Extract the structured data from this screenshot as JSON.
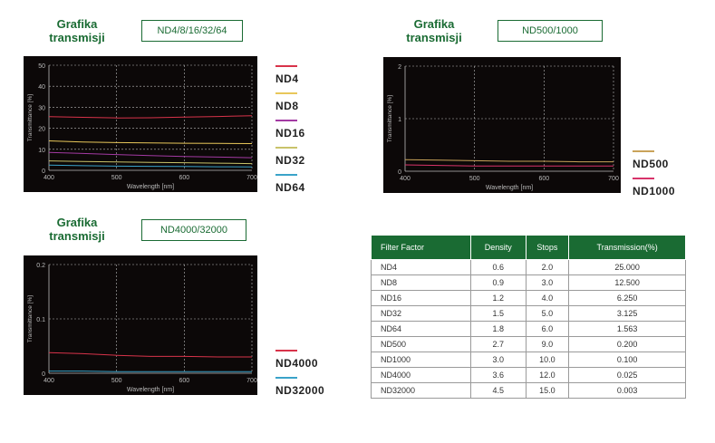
{
  "panels": [
    {
      "title_line1": "Grafika",
      "title_line2": "transmisji",
      "box_label": "ND4/8/16/32/64"
    },
    {
      "title_line1": "Grafika",
      "title_line2": "transmisji",
      "box_label": "ND500/1000"
    },
    {
      "title_line1": "Grafika",
      "title_line2": "transmisji",
      "box_label": "ND4000/32000"
    }
  ],
  "chart_data": [
    {
      "type": "line",
      "xlabel": "Wavelength [nm]",
      "ylabel": "Transmittance [%]",
      "xlim": [
        400,
        700
      ],
      "ylim": [
        0,
        50
      ],
      "xticks": [
        "400",
        "500",
        "600",
        "700"
      ],
      "yticks": [
        "0",
        "10",
        "20",
        "30",
        "40",
        "50"
      ],
      "grid": true,
      "legend_position": "right",
      "series": [
        {
          "name": "ND4",
          "color": "#d8334a",
          "x": [
            400,
            450,
            500,
            550,
            600,
            650,
            700
          ],
          "y": [
            25.5,
            25.2,
            24.9,
            25.0,
            25.3,
            25.6,
            26.0
          ]
        },
        {
          "name": "ND8",
          "color": "#e8c75a",
          "x": [
            400,
            450,
            500,
            550,
            600,
            650,
            700
          ],
          "y": [
            14.0,
            13.5,
            13.2,
            13.0,
            12.9,
            12.8,
            12.7
          ]
        },
        {
          "name": "ND16",
          "color": "#a33aa3",
          "x": [
            400,
            450,
            500,
            550,
            600,
            650,
            700
          ],
          "y": [
            8.5,
            8.0,
            7.5,
            7.0,
            6.6,
            6.3,
            6.0
          ]
        },
        {
          "name": "ND32",
          "color": "#c9c36a",
          "x": [
            400,
            450,
            500,
            550,
            600,
            650,
            700
          ],
          "y": [
            4.5,
            4.2,
            4.0,
            3.8,
            3.6,
            3.4,
            3.2
          ]
        },
        {
          "name": "ND64",
          "color": "#3aa3c9",
          "x": [
            400,
            450,
            500,
            550,
            600,
            650,
            700
          ],
          "y": [
            2.5,
            2.2,
            2.0,
            1.9,
            1.8,
            1.7,
            1.6
          ]
        }
      ]
    },
    {
      "type": "line",
      "xlabel": "Wavelength [nm]",
      "ylabel": "Transmittance [%]",
      "xlim": [
        400,
        700
      ],
      "ylim": [
        0,
        2
      ],
      "xticks": [
        "400",
        "500",
        "600",
        "700"
      ],
      "yticks": [
        "0",
        "1",
        "2"
      ],
      "grid": true,
      "legend_position": "right",
      "series": [
        {
          "name": "ND500",
          "color": "#c9a35a",
          "x": [
            400,
            450,
            500,
            550,
            600,
            650,
            700
          ],
          "y": [
            0.22,
            0.21,
            0.2,
            0.19,
            0.19,
            0.18,
            0.18
          ]
        },
        {
          "name": "ND1000",
          "color": "#d8336a",
          "x": [
            400,
            450,
            500,
            550,
            600,
            650,
            700
          ],
          "y": [
            0.12,
            0.11,
            0.1,
            0.1,
            0.1,
            0.1,
            0.1
          ]
        }
      ]
    },
    {
      "type": "line",
      "xlabel": "Wavelength [nm]",
      "ylabel": "Transmittance [%]",
      "xlim": [
        400,
        700
      ],
      "ylim": [
        0,
        0.2
      ],
      "xticks": [
        "400",
        "500",
        "600",
        "700"
      ],
      "yticks": [
        "0",
        "0.1",
        "0.2"
      ],
      "grid": true,
      "legend_position": "right",
      "series": [
        {
          "name": "ND4000",
          "color": "#d8334a",
          "x": [
            400,
            450,
            500,
            550,
            600,
            650,
            700
          ],
          "y": [
            0.038,
            0.036,
            0.033,
            0.031,
            0.031,
            0.03,
            0.03
          ]
        },
        {
          "name": "ND32000",
          "color": "#3aa3c9",
          "x": [
            400,
            450,
            500,
            550,
            600,
            650,
            700
          ],
          "y": [
            0.004,
            0.004,
            0.003,
            0.003,
            0.003,
            0.003,
            0.003
          ]
        }
      ]
    }
  ],
  "table": {
    "headers": [
      "Filter Factor",
      "Density",
      "Stops",
      "Transmission(%)"
    ],
    "rows": [
      [
        "ND4",
        "0.6",
        "2.0",
        "25.000"
      ],
      [
        "ND8",
        "0.9",
        "3.0",
        "12.500"
      ],
      [
        "ND16",
        "1.2",
        "4.0",
        "6.250"
      ],
      [
        "ND32",
        "1.5",
        "5.0",
        "3.125"
      ],
      [
        "ND64",
        "1.8",
        "6.0",
        "1.563"
      ],
      [
        "ND500",
        "2.7",
        "9.0",
        "0.200"
      ],
      [
        "ND1000",
        "3.0",
        "10.0",
        "0.100"
      ],
      [
        "ND4000",
        "3.6",
        "12.0",
        "0.025"
      ],
      [
        "ND32000",
        "4.5",
        "15.0",
        "0.003"
      ]
    ]
  }
}
